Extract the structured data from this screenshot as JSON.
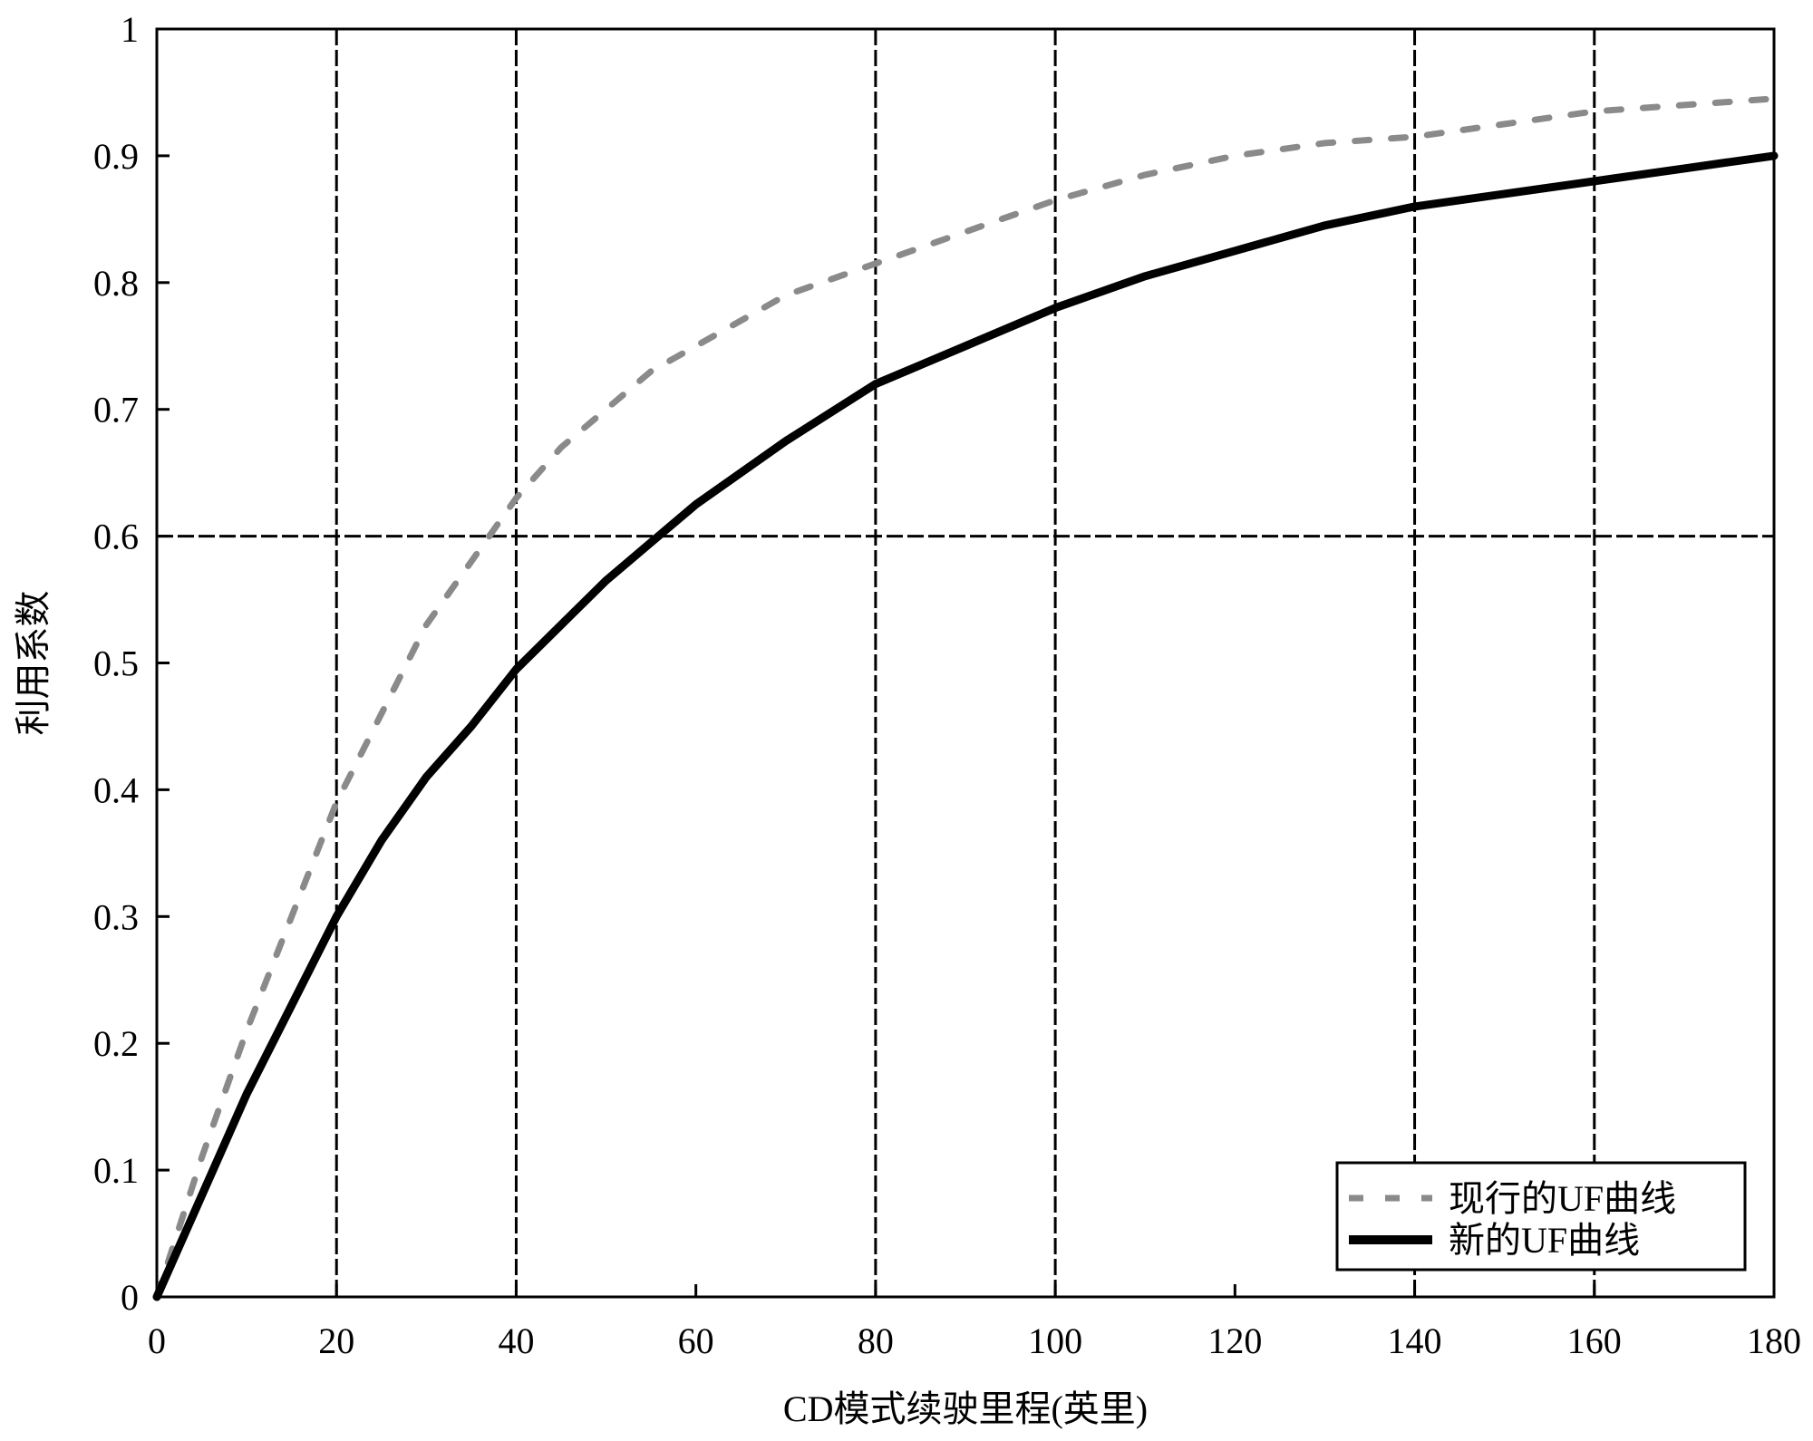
{
  "chart_data": {
    "type": "line",
    "xlabel": "CD模式续驶里程(英里)",
    "ylabel": "利用系数",
    "xlim": [
      0,
      180
    ],
    "ylim": [
      0,
      1
    ],
    "xticks": [
      "0",
      "20",
      "40",
      "60",
      "80",
      "100",
      "120",
      "140",
      "160",
      "180"
    ],
    "yticks": [
      "0",
      "0.1",
      "0.2",
      "0.3",
      "0.4",
      "0.5",
      "0.6",
      "0.7",
      "0.8",
      "0.9",
      "1"
    ],
    "grid": {
      "x_lines_at": [
        20,
        40,
        80,
        100,
        140,
        160
      ],
      "y_lines_at": [
        0.6,
        1.0
      ],
      "style": "dashed"
    },
    "legend": {
      "position": "bottom-right"
    },
    "series": [
      {
        "name": "现行的UF曲线",
        "style": "dashed",
        "color": "#8a8a8a",
        "x": [
          0,
          5,
          10,
          15,
          20,
          25,
          30,
          35,
          40,
          45,
          50,
          55,
          60,
          70,
          80,
          90,
          100,
          110,
          120,
          130,
          140,
          150,
          160,
          170,
          180
        ],
        "y": [
          0,
          0.11,
          0.21,
          0.3,
          0.39,
          0.46,
          0.53,
          0.58,
          0.63,
          0.67,
          0.7,
          0.73,
          0.75,
          0.79,
          0.815,
          0.84,
          0.865,
          0.885,
          0.9,
          0.91,
          0.915,
          0.925,
          0.935,
          0.94,
          0.945
        ]
      },
      {
        "name": "新的UF曲线",
        "style": "solid",
        "color": "#000000",
        "x": [
          0,
          5,
          10,
          15,
          20,
          25,
          30,
          35,
          40,
          45,
          50,
          55,
          60,
          70,
          80,
          90,
          100,
          110,
          120,
          130,
          140,
          150,
          160,
          170,
          180
        ],
        "y": [
          0,
          0.08,
          0.16,
          0.23,
          0.3,
          0.36,
          0.41,
          0.45,
          0.495,
          0.53,
          0.565,
          0.595,
          0.625,
          0.675,
          0.72,
          0.75,
          0.78,
          0.805,
          0.825,
          0.845,
          0.86,
          0.87,
          0.88,
          0.89,
          0.9
        ]
      }
    ]
  }
}
